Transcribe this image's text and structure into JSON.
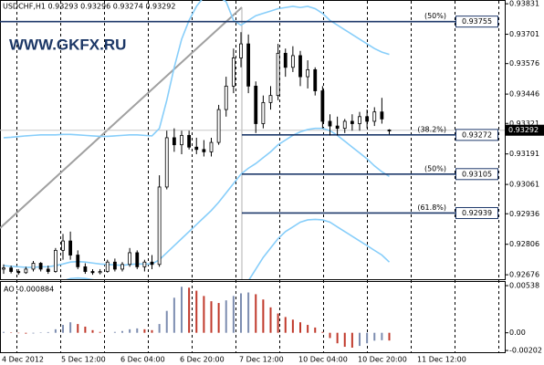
{
  "chart_data": [
    {
      "type": "candlestick",
      "title": "USDCHF,H1  0.93293 0.93296 0.93274 0.93292",
      "watermark": "WWW.GKFX.RU",
      "categories": [
        "4 Dec 2012",
        null,
        null,
        null,
        null,
        null,
        null,
        null,
        "5 Dec 12:00",
        null,
        null,
        null,
        null,
        null,
        null,
        null,
        "6 Dec 04:00",
        null,
        null,
        null,
        null,
        null,
        null,
        null,
        "6 Dec 20:00",
        null,
        null,
        null,
        null,
        null,
        null,
        null,
        "7 Dec 12:00",
        null,
        null,
        null,
        null,
        null,
        null,
        null,
        "10 Dec 04:00",
        null,
        null,
        null,
        null,
        null,
        null,
        null,
        "10 Dec 20:00",
        null,
        null,
        null,
        null,
        null,
        null,
        null,
        "11 Dec 12:00",
        null
      ],
      "open": [
        0.927,
        0.92705,
        0.9269,
        0.92685,
        0.927,
        0.92725,
        0.927,
        0.9269,
        0.9278,
        0.9282,
        0.9276,
        0.9271,
        0.9269,
        0.92685,
        0.9269,
        0.9273,
        0.927,
        0.9272,
        0.9277,
        0.9271,
        0.9273,
        0.9272,
        0.9305,
        0.9326,
        0.9323,
        0.9327,
        0.9322,
        0.9321,
        0.932,
        0.9324,
        0.9338,
        0.9348,
        0.936,
        0.9366,
        0.9348,
        0.9332,
        0.9341,
        0.9344,
        0.9362,
        0.9356,
        0.9361,
        0.9352,
        0.9355,
        0.9346,
        0.9333,
        0.9331,
        0.933,
        0.9333,
        0.9332,
        0.9335,
        0.9333,
        0.9337,
        0.93293,
        null,
        null,
        null,
        null,
        null
      ],
      "high": [
        0.9272,
        0.92715,
        0.927,
        0.9271,
        0.92735,
        0.9273,
        0.92715,
        0.9279,
        0.9285,
        0.9286,
        0.9278,
        0.92725,
        0.927,
        0.927,
        0.9274,
        0.92745,
        0.9273,
        0.9279,
        0.9278,
        0.9274,
        0.9276,
        0.931,
        0.9329,
        0.933,
        0.9329,
        0.9329,
        0.9326,
        0.9325,
        0.9326,
        0.934,
        0.9352,
        0.9364,
        0.9371,
        0.937,
        0.935,
        0.9344,
        0.9348,
        0.9366,
        0.9364,
        0.9365,
        0.9363,
        0.9359,
        0.9356,
        0.9348,
        0.9336,
        0.9335,
        0.9334,
        0.9336,
        0.9337,
        0.9338,
        0.9339,
        0.9343,
        0.93296,
        null,
        null,
        null,
        null,
        null
      ],
      "low": [
        0.9268,
        0.92682,
        0.92676,
        0.9268,
        0.9269,
        0.9269,
        0.9268,
        0.92685,
        0.9274,
        0.9274,
        0.927,
        0.9268,
        0.92676,
        0.92678,
        0.92685,
        0.9269,
        0.9269,
        0.9271,
        0.927,
        0.9269,
        0.927,
        0.9271,
        0.9304,
        0.932,
        0.9319,
        0.9321,
        0.9319,
        0.9318,
        0.9318,
        0.9323,
        0.9335,
        0.9345,
        0.9356,
        0.9345,
        0.9328,
        0.933,
        0.9338,
        0.9342,
        0.9352,
        0.9354,
        0.9348,
        0.9347,
        0.9344,
        0.933,
        0.9327,
        0.9327,
        0.9328,
        0.9329,
        0.9329,
        0.933,
        0.9331,
        0.9332,
        0.93274,
        null,
        null,
        null,
        null,
        null
      ],
      "close": [
        0.92705,
        0.9269,
        0.92685,
        0.927,
        0.92725,
        0.927,
        0.9269,
        0.9278,
        0.9282,
        0.9276,
        0.9271,
        0.9269,
        0.92685,
        0.9269,
        0.9273,
        0.927,
        0.9272,
        0.9277,
        0.9271,
        0.9273,
        0.9272,
        0.9305,
        0.9326,
        0.9323,
        0.9327,
        0.9322,
        0.9321,
        0.932,
        0.9324,
        0.9338,
        0.9348,
        0.936,
        0.9366,
        0.9348,
        0.9332,
        0.9341,
        0.9344,
        0.9362,
        0.9356,
        0.9361,
        0.9352,
        0.9355,
        0.9346,
        0.9333,
        0.9331,
        0.933,
        0.9333,
        0.9332,
        0.9335,
        0.9333,
        0.9337,
        0.9334,
        0.93292,
        null,
        null,
        null,
        null,
        null
      ],
      "color": "#000000",
      "bands": {
        "color": "#87cefa",
        "upper": [
          0.9326,
          0.93262,
          0.93265,
          0.93268,
          0.9327,
          0.93272,
          0.93272,
          0.93272,
          0.93274,
          0.93274,
          0.93272,
          0.9327,
          0.93268,
          0.93266,
          0.93266,
          0.93268,
          0.9327,
          0.93272,
          0.93272,
          0.9327,
          0.93268,
          0.933,
          0.9342,
          0.9356,
          0.9368,
          0.9376,
          0.9382,
          0.9386,
          0.9388,
          0.9386,
          0.9384,
          0.9376,
          0.9374,
          0.9376,
          0.9378,
          0.9379,
          0.938,
          0.9381,
          0.93815,
          0.9382,
          0.93815,
          0.9382,
          0.9381,
          0.9379,
          0.9376,
          0.9374,
          0.9372,
          0.937,
          0.9368,
          0.9366,
          0.9364,
          0.93625,
          0.93615,
          null,
          null,
          null,
          null,
          null
        ],
        "middle": [
          0.92715,
          0.92712,
          0.9271,
          0.92708,
          0.92708,
          0.9271,
          0.9271,
          0.92715,
          0.92722,
          0.9273,
          0.92732,
          0.9273,
          0.92726,
          0.92722,
          0.9272,
          0.92718,
          0.92716,
          0.9272,
          0.92722,
          0.92722,
          0.92722,
          0.9274,
          0.9277,
          0.928,
          0.9283,
          0.9286,
          0.9289,
          0.9292,
          0.9295,
          0.92985,
          0.93025,
          0.93065,
          0.93105,
          0.9313,
          0.9315,
          0.93175,
          0.932,
          0.9323,
          0.9325,
          0.9327,
          0.93285,
          0.93295,
          0.933,
          0.933,
          0.9329,
          0.9327,
          0.93245,
          0.9322,
          0.93195,
          0.9317,
          0.9314,
          0.93115,
          0.93095,
          null,
          null,
          null,
          null,
          null
        ],
        "lower": [
          0.9265,
          0.92645,
          0.9264,
          0.92635,
          0.92632,
          0.92634,
          0.92634,
          0.9264,
          0.9265,
          0.9266,
          0.92662,
          0.9266,
          0.92655,
          0.9265,
          0.92646,
          0.92642,
          0.92638,
          0.9264,
          0.92642,
          0.92642,
          0.92642,
          0.926,
          0.9252,
          0.9245,
          0.924,
          0.9238,
          0.9237,
          0.9238,
          0.924,
          0.9243,
          0.9247,
          0.9252,
          0.9258,
          0.9265,
          0.927,
          0.9275,
          0.9279,
          0.9283,
          0.9286,
          0.9288,
          0.929,
          0.9291,
          0.92912,
          0.9291,
          0.929,
          0.9288,
          0.9286,
          0.9284,
          0.9282,
          0.928,
          0.9278,
          0.9276,
          0.9273,
          null,
          null,
          null,
          null,
          null
        ]
      },
      "levels": [
        {
          "price": 0.93755,
          "ratio": "(50%)"
        },
        {
          "price": 0.93272,
          "ratio": "(38.2%)"
        },
        {
          "price": 0.93105,
          "ratio": "(50%)"
        },
        {
          "price": 0.92939,
          "ratio": "(61.8%)"
        }
      ],
      "level_color": "#1f3a6b",
      "bid": 0.93292,
      "ylim": [
        0.92657,
        0.93847
      ],
      "yticks": [
        0.93831,
        0.93701,
        0.93576,
        0.93446,
        0.93321,
        0.93191,
        0.93061,
        0.92936,
        0.92806,
        0.92676
      ]
    },
    {
      "type": "bar",
      "title": "AO -0.000884",
      "values": [
        0.0001,
        5e-05,
        -5e-05,
        -0.0001,
        -8e-05,
        5e-05,
        8e-05,
        0.0004,
        0.0009,
        0.0012,
        0.001,
        0.0007,
        0.0003,
        0.0001,
        0.0,
        0.0001,
        0.0002,
        0.0004,
        0.0005,
        0.0004,
        0.0003,
        0.001,
        0.0025,
        0.004,
        0.00525,
        0.00515,
        0.0048,
        0.0042,
        0.0036,
        0.0034,
        0.0037,
        0.0042,
        0.0045,
        0.0046,
        0.0044,
        0.0038,
        0.0029,
        0.0022,
        0.0018,
        0.0015,
        0.0012,
        0.0009,
        0.0006,
        0.0001,
        -0.0006,
        -0.0012,
        -0.0016,
        -0.0017,
        -0.0015,
        -0.0012,
        -0.0009,
        -0.00085,
        -0.000884,
        null,
        null,
        null,
        null,
        null
      ],
      "up_color": "#7d8db0",
      "down_color": "#c0392b",
      "ylim": [
        -0.00222,
        0.0058
      ],
      "yticks": [
        0.00538,
        {
          "value": 0,
          "label": "0.00"
        },
        -0.00202
      ]
    }
  ]
}
